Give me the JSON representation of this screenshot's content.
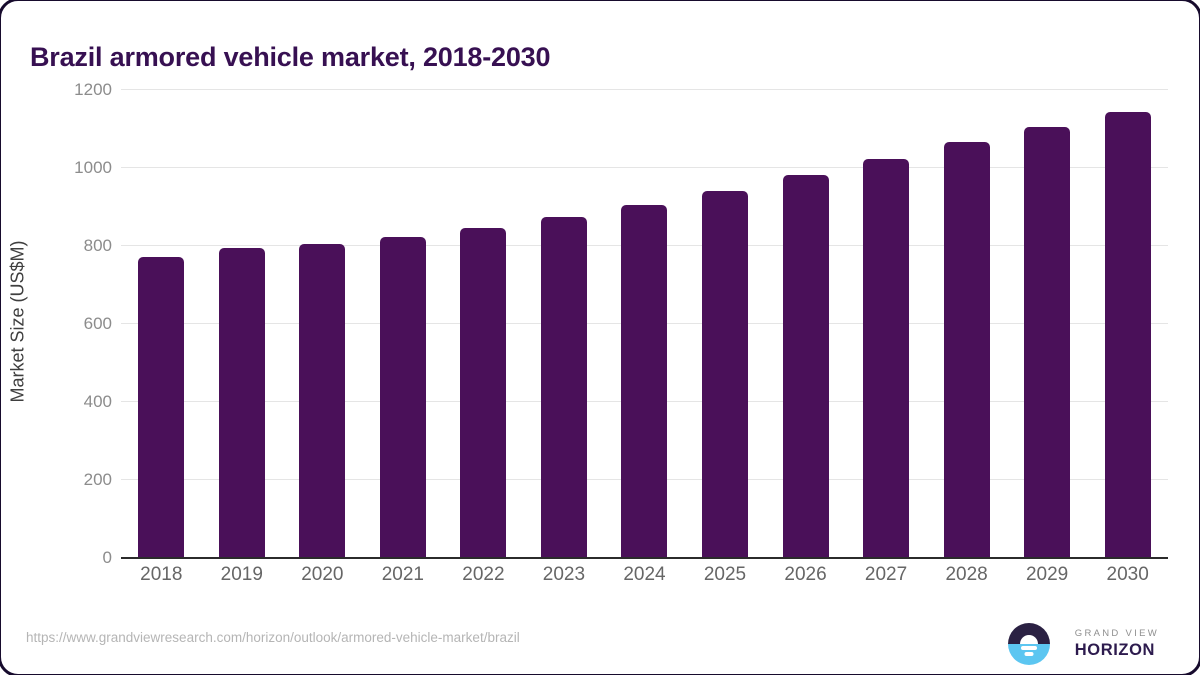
{
  "title": "Brazil armored vehicle market, 2018-2030",
  "chart_data": {
    "type": "bar",
    "title": "Brazil armored vehicle market, 2018-2030",
    "categories": [
      "2018",
      "2019",
      "2020",
      "2021",
      "2022",
      "2023",
      "2024",
      "2025",
      "2026",
      "2027",
      "2028",
      "2029",
      "2030"
    ],
    "values": [
      771,
      795,
      806,
      824,
      847,
      874,
      905,
      942,
      982,
      1023,
      1066,
      1106,
      1144
    ],
    "xlabel": "",
    "ylabel": "Market Size (US$M)",
    "ylim": [
      0,
      1200
    ],
    "yticks": [
      0,
      200,
      400,
      600,
      800,
      1000,
      1200
    ],
    "grid": true,
    "legend": false,
    "bar_color": "#4a1059"
  },
  "colors": {
    "title": "#371052",
    "bar": "#4a1059",
    "gridline": "#e5e5e5",
    "axis_line": "#2b2b2b",
    "y_tick": "#8c8c8c",
    "x_tick": "#666666",
    "url_text": "#b5b5b5",
    "logo_navy": "#2b2143",
    "logo_blue": "#5cc6f1",
    "logo_purple": "#2d1b4e"
  },
  "footer": {
    "source_url": "https://www.grandviewresearch.com/horizon/outlook/armored-vehicle-market/brazil",
    "logo_top": "GRAND VIEW",
    "logo_bottom": "HORIZON"
  }
}
